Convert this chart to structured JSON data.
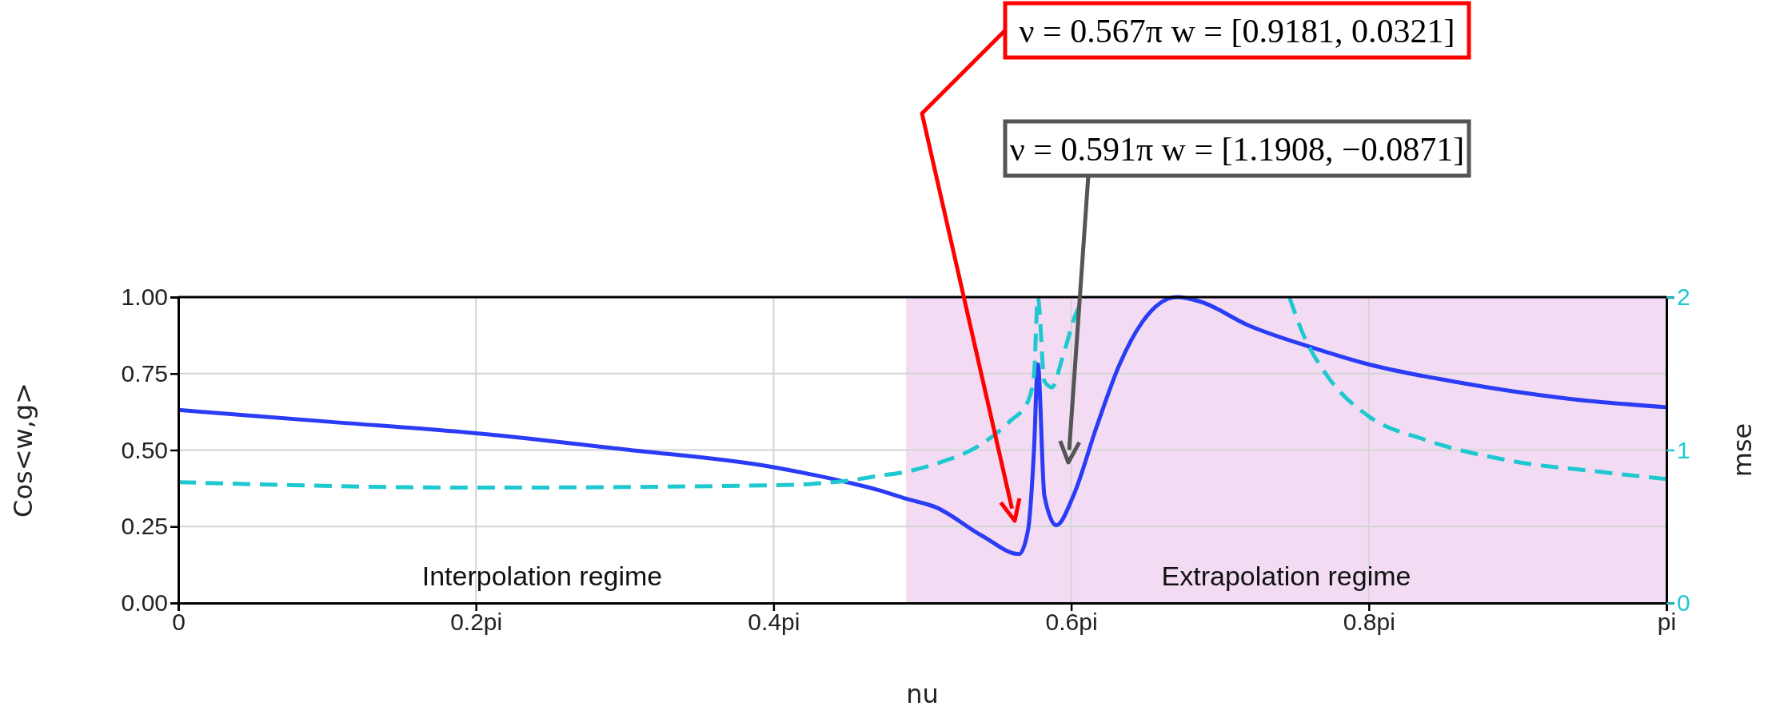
{
  "chart_data": {
    "type": "line",
    "xlabel": "nu",
    "ylabel": "Cos<w,g>",
    "y2label": "mse",
    "xlim": [
      0,
      1
    ],
    "xticks": [
      {
        "value": 0,
        "label": "0"
      },
      {
        "value": 0.2,
        "label": "0.2pi"
      },
      {
        "value": 0.4,
        "label": "0.4pi"
      },
      {
        "value": 0.6,
        "label": "0.6pi"
      },
      {
        "value": 0.8,
        "label": "0.8pi"
      },
      {
        "value": 1,
        "label": "pi"
      }
    ],
    "ylim": [
      0,
      1
    ],
    "yticks": [
      {
        "value": 0,
        "label": "0.00"
      },
      {
        "value": 0.25,
        "label": "0.25"
      },
      {
        "value": 0.5,
        "label": "0.50"
      },
      {
        "value": 0.75,
        "label": "0.75"
      },
      {
        "value": 1,
        "label": "1.00"
      }
    ],
    "y2lim": [
      0,
      2
    ],
    "y2ticks": [
      0,
      1,
      2
    ],
    "grid": true,
    "series": [
      {
        "color": "#2a3cf5",
        "line_style": "solid",
        "x": [
          0,
          0.1,
          0.2,
          0.3,
          0.4,
          0.45,
          0.47,
          0.489,
          0.509,
          0.54,
          0.565,
          0.571,
          0.575,
          0.5776,
          0.582,
          0.59,
          0.6015,
          0.617,
          0.6325,
          0.648,
          0.671,
          0.687,
          0.718,
          0.764,
          0.8,
          0.857,
          0.934,
          1
        ],
        "values": [
          0.631,
          0.593,
          0.555,
          0.502,
          0.444,
          0.394,
          0.37,
          0.341,
          0.313,
          0.22,
          0.16,
          0.239,
          0.5,
          0.78,
          0.35,
          0.254,
          0.351,
          0.575,
          0.78,
          0.92,
          1.0,
          0.985,
          0.91,
          0.832,
          0.78,
          0.724,
          0.668,
          0.64
        ]
      },
      {
        "color": "#1fc8d0",
        "line_style": "dashed",
        "axis": "y2",
        "x": [
          0,
          0.2,
          0.4,
          0.45,
          0.47,
          0.49,
          0.509,
          0.54,
          0.559,
          0.571,
          0.575,
          0.5776,
          0.582,
          0.587,
          0.594,
          0.6035,
          0.6093,
          0.68,
          0.7466,
          0.7562,
          0.7717,
          0.8,
          0.837,
          0.895,
          0.953,
          1
        ],
        "values": [
          0.79,
          0.754,
          0.77,
          0.8,
          0.83,
          0.86,
          0.91,
          1.04,
          1.19,
          1.32,
          1.49,
          2.0,
          1.45,
          1.41,
          1.6,
          1.9,
          2.0,
          null,
          2.0,
          1.75,
          1.49,
          1.22,
          1.07,
          0.93,
          0.86,
          0.81
        ]
      }
    ],
    "bands": [
      {
        "axis": "x",
        "from": 0.489,
        "to": 1,
        "label": "Extrapolation regime",
        "color": "#f3dcf3"
      }
    ],
    "annotations": [
      "ν = 0.567π  w = [0.9181, 0.0321]",
      "ν = 0.591π  w = [1.1908, −0.0871]",
      "Interpolation regime"
    ]
  }
}
